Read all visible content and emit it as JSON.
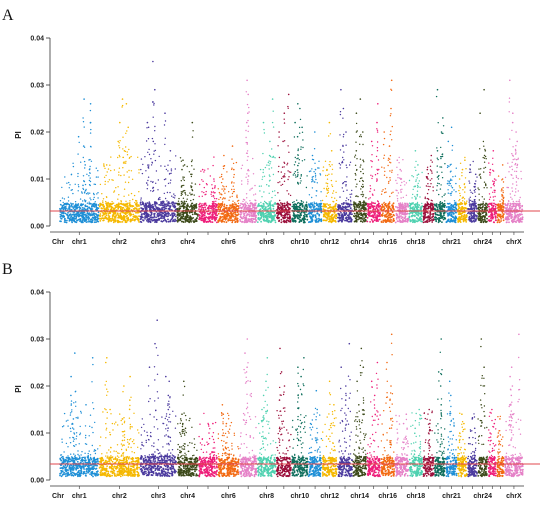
{
  "chart_data": [
    {
      "type": "scatter",
      "panel_label": "A",
      "ylabel": "PI",
      "ylim": [
        0,
        0.04
      ],
      "yticks": [
        "0.00",
        "0.01",
        "0.02",
        "0.03",
        "0.04"
      ],
      "threshold": 0.0032,
      "threshold_color": "#e0474c",
      "x_axis_title": "Chr",
      "chromosomes": [
        {
          "name": "chr1",
          "label": "chr1",
          "size": 1.55,
          "color": "#1e8fd6",
          "baseline": 0.003,
          "peaks": [
            0.027,
            0.026,
            0.022,
            0.019,
            0.017,
            0.013,
            0.012
          ]
        },
        {
          "name": "chr2",
          "label": "chr2",
          "size": 1.6,
          "color": "#f5b800",
          "baseline": 0.003,
          "peaks": [
            0.027,
            0.026,
            0.022,
            0.021,
            0.018,
            0.016,
            0.013
          ]
        },
        {
          "name": "chr3",
          "label": "chr3",
          "size": 1.45,
          "color": "#4b3a9e",
          "baseline": 0.0032,
          "peaks": [
            0.035,
            0.029,
            0.024,
            0.022,
            0.021,
            0.018,
            0.016
          ]
        },
        {
          "name": "chr4",
          "label": "chr4",
          "size": 0.85,
          "color": "#3c4a1a",
          "baseline": 0.003,
          "peaks": [
            0.022,
            0.014,
            0.013,
            0.012,
            0.011
          ]
        },
        {
          "name": "chr5",
          "label": "",
          "size": 0.75,
          "color": "#ee1f7a",
          "baseline": 0.003,
          "peaks": [
            0.012,
            0.01,
            0.008
          ]
        },
        {
          "name": "chr6",
          "label": "chr6",
          "size": 0.85,
          "color": "#f26a13",
          "baseline": 0.003,
          "peaks": [
            0.017,
            0.015,
            0.012,
            0.01
          ]
        },
        {
          "name": "chr7",
          "label": "",
          "size": 0.7,
          "color": "#e581c7",
          "baseline": 0.003,
          "peaks": [
            0.031,
            0.028,
            0.024,
            0.022
          ]
        },
        {
          "name": "chr8",
          "label": "chr8",
          "size": 0.75,
          "color": "#4fd1b0",
          "baseline": 0.003,
          "peaks": [
            0.027,
            0.022,
            0.018,
            0.015
          ]
        },
        {
          "name": "chr9",
          "label": "",
          "size": 0.6,
          "color": "#9b0f3b",
          "baseline": 0.003,
          "peaks": [
            0.028,
            0.024,
            0.02,
            0.018
          ]
        },
        {
          "name": "chr10",
          "label": "chr10",
          "size": 0.65,
          "color": "#0e6e5c",
          "baseline": 0.003,
          "peaks": [
            0.026,
            0.025,
            0.022,
            0.021,
            0.019
          ]
        },
        {
          "name": "chr11",
          "label": "",
          "size": 0.55,
          "color": "#1e8fd6",
          "baseline": 0.003,
          "peaks": [
            0.02,
            0.015,
            0.012
          ]
        },
        {
          "name": "chr12",
          "label": "chr12",
          "size": 0.6,
          "color": "#f5b800",
          "baseline": 0.003,
          "peaks": [
            0.022,
            0.016,
            0.012
          ]
        },
        {
          "name": "chr13",
          "label": "",
          "size": 0.6,
          "color": "#4b3a9e",
          "baseline": 0.003,
          "peaks": [
            0.029,
            0.025,
            0.02,
            0.017
          ]
        },
        {
          "name": "chr14",
          "label": "chr14",
          "size": 0.55,
          "color": "#3c4a1a",
          "baseline": 0.0032,
          "peaks": [
            0.027,
            0.024,
            0.02,
            0.016,
            0.014
          ]
        },
        {
          "name": "chr15",
          "label": "",
          "size": 0.55,
          "color": "#ee1f7a",
          "baseline": 0.003,
          "peaks": [
            0.026,
            0.022,
            0.018
          ]
        },
        {
          "name": "chr16",
          "label": "chr16",
          "size": 0.55,
          "color": "#f26a13",
          "baseline": 0.003,
          "peaks": [
            0.031,
            0.025,
            0.02,
            0.017
          ]
        },
        {
          "name": "chr17",
          "label": "",
          "size": 0.55,
          "color": "#e581c7",
          "baseline": 0.003,
          "peaks": [
            0.014,
            0.012,
            0.01
          ]
        },
        {
          "name": "chr18",
          "label": "chr18",
          "size": 0.55,
          "color": "#4fd1b0",
          "baseline": 0.003,
          "peaks": [
            0.016,
            0.013,
            0.011
          ]
        },
        {
          "name": "chr19",
          "label": "",
          "size": 0.45,
          "color": "#9b0f3b",
          "baseline": 0.003,
          "peaks": [
            0.015,
            0.012,
            0.01
          ]
        },
        {
          "name": "chr20",
          "label": "",
          "size": 0.45,
          "color": "#0e6e5c",
          "baseline": 0.003,
          "peaks": [
            0.029,
            0.023,
            0.02,
            0.016
          ]
        },
        {
          "name": "chr21",
          "label": "chr21",
          "size": 0.45,
          "color": "#1e8fd6",
          "baseline": 0.003,
          "peaks": [
            0.021,
            0.018,
            0.013
          ]
        },
        {
          "name": "chr22",
          "label": "",
          "size": 0.4,
          "color": "#f5b800",
          "baseline": 0.003,
          "peaks": [
            0.014,
            0.012,
            0.01
          ]
        },
        {
          "name": "chr23",
          "label": "",
          "size": 0.4,
          "color": "#4b3a9e",
          "baseline": 0.003,
          "peaks": [
            0.013,
            0.011,
            0.009
          ]
        },
        {
          "name": "chr24",
          "label": "chr24",
          "size": 0.4,
          "color": "#3c4a1a",
          "baseline": 0.003,
          "peaks": [
            0.029,
            0.024,
            0.016
          ]
        },
        {
          "name": "chr25",
          "label": "",
          "size": 0.35,
          "color": "#ee1f7a",
          "baseline": 0.003,
          "peaks": [
            0.016,
            0.012,
            0.01
          ]
        },
        {
          "name": "chr26",
          "label": "",
          "size": 0.3,
          "color": "#f26a13",
          "baseline": 0.003,
          "peaks": [
            0.013,
            0.01
          ]
        },
        {
          "name": "chrX",
          "label": "chrX",
          "size": 0.75,
          "color": "#e581c7",
          "baseline": 0.003,
          "peaks": [
            0.031,
            0.024,
            0.022,
            0.02,
            0.018,
            0.016
          ]
        }
      ]
    },
    {
      "type": "scatter",
      "panel_label": "B",
      "ylabel": "PI",
      "ylim": [
        0,
        0.04
      ],
      "yticks": [
        "0.00",
        "0.01",
        "0.02",
        "0.03",
        "0.04"
      ],
      "threshold": 0.0034,
      "threshold_color": "#e0474c",
      "x_axis_title": "Chr",
      "chromosomes": [
        {
          "name": "chr1",
          "label": "chr1",
          "size": 1.55,
          "color": "#1e8fd6",
          "baseline": 0.003,
          "peaks": [
            0.027,
            0.026,
            0.022,
            0.018,
            0.016,
            0.013,
            0.012
          ]
        },
        {
          "name": "chr2",
          "label": "chr2",
          "size": 1.6,
          "color": "#f5b800",
          "baseline": 0.003,
          "peaks": [
            0.026,
            0.025,
            0.022,
            0.02,
            0.017,
            0.015,
            0.013
          ]
        },
        {
          "name": "chr3",
          "label": "chr3",
          "size": 1.45,
          "color": "#4b3a9e",
          "baseline": 0.0032,
          "peaks": [
            0.034,
            0.029,
            0.024,
            0.022,
            0.021,
            0.018,
            0.015
          ]
        },
        {
          "name": "chr4",
          "label": "chr4",
          "size": 0.85,
          "color": "#3c4a1a",
          "baseline": 0.003,
          "peaks": [
            0.021,
            0.014,
            0.013,
            0.012,
            0.011
          ]
        },
        {
          "name": "chr5",
          "label": "",
          "size": 0.75,
          "color": "#ee1f7a",
          "baseline": 0.003,
          "peaks": [
            0.012,
            0.01,
            0.008
          ]
        },
        {
          "name": "chr6",
          "label": "chr6",
          "size": 0.85,
          "color": "#f26a13",
          "baseline": 0.003,
          "peaks": [
            0.016,
            0.014,
            0.012,
            0.01
          ]
        },
        {
          "name": "chr7",
          "label": "",
          "size": 0.7,
          "color": "#e581c7",
          "baseline": 0.003,
          "peaks": [
            0.03,
            0.027,
            0.024,
            0.021
          ]
        },
        {
          "name": "chr8",
          "label": "chr8",
          "size": 0.75,
          "color": "#4fd1b0",
          "baseline": 0.003,
          "peaks": [
            0.026,
            0.021,
            0.018,
            0.015
          ]
        },
        {
          "name": "chr9",
          "label": "",
          "size": 0.6,
          "color": "#9b0f3b",
          "baseline": 0.003,
          "peaks": [
            0.028,
            0.023,
            0.02,
            0.017
          ]
        },
        {
          "name": "chr10",
          "label": "chr10",
          "size": 0.65,
          "color": "#0e6e5c",
          "baseline": 0.003,
          "peaks": [
            0.026,
            0.024,
            0.022,
            0.02,
            0.018
          ]
        },
        {
          "name": "chr11",
          "label": "",
          "size": 0.55,
          "color": "#1e8fd6",
          "baseline": 0.003,
          "peaks": [
            0.019,
            0.015,
            0.012
          ]
        },
        {
          "name": "chr12",
          "label": "chr12",
          "size": 0.6,
          "color": "#f5b800",
          "baseline": 0.003,
          "peaks": [
            0.021,
            0.016,
            0.012
          ]
        },
        {
          "name": "chr13",
          "label": "",
          "size": 0.6,
          "color": "#4b3a9e",
          "baseline": 0.003,
          "peaks": [
            0.029,
            0.024,
            0.02,
            0.017
          ]
        },
        {
          "name": "chr14",
          "label": "chr14",
          "size": 0.55,
          "color": "#3c4a1a",
          "baseline": 0.0032,
          "peaks": [
            0.028,
            0.024,
            0.021,
            0.016,
            0.014
          ]
        },
        {
          "name": "chr15",
          "label": "",
          "size": 0.55,
          "color": "#ee1f7a",
          "baseline": 0.003,
          "peaks": [
            0.025,
            0.021,
            0.018
          ]
        },
        {
          "name": "chr16",
          "label": "chr16",
          "size": 0.55,
          "color": "#f26a13",
          "baseline": 0.003,
          "peaks": [
            0.031,
            0.025,
            0.02,
            0.017
          ]
        },
        {
          "name": "chr17",
          "label": "",
          "size": 0.55,
          "color": "#e581c7",
          "baseline": 0.003,
          "peaks": [
            0.014,
            0.012,
            0.01
          ]
        },
        {
          "name": "chr18",
          "label": "chr18",
          "size": 0.55,
          "color": "#4fd1b0",
          "baseline": 0.003,
          "peaks": [
            0.015,
            0.013,
            0.011
          ]
        },
        {
          "name": "chr19",
          "label": "",
          "size": 0.45,
          "color": "#9b0f3b",
          "baseline": 0.003,
          "peaks": [
            0.015,
            0.012,
            0.01
          ]
        },
        {
          "name": "chr20",
          "label": "",
          "size": 0.45,
          "color": "#0e6e5c",
          "baseline": 0.003,
          "peaks": [
            0.03,
            0.023,
            0.02,
            0.016
          ]
        },
        {
          "name": "chr21",
          "label": "chr21",
          "size": 0.45,
          "color": "#1e8fd6",
          "baseline": 0.003,
          "peaks": [
            0.021,
            0.018,
            0.013
          ]
        },
        {
          "name": "chr22",
          "label": "",
          "size": 0.4,
          "color": "#f5b800",
          "baseline": 0.003,
          "peaks": [
            0.014,
            0.012,
            0.01
          ]
        },
        {
          "name": "chr23",
          "label": "",
          "size": 0.4,
          "color": "#4b3a9e",
          "baseline": 0.003,
          "peaks": [
            0.013,
            0.011,
            0.009
          ]
        },
        {
          "name": "chr24",
          "label": "chr24",
          "size": 0.4,
          "color": "#3c4a1a",
          "baseline": 0.003,
          "peaks": [
            0.03,
            0.024,
            0.016
          ]
        },
        {
          "name": "chr25",
          "label": "",
          "size": 0.35,
          "color": "#ee1f7a",
          "baseline": 0.003,
          "peaks": [
            0.015,
            0.012,
            0.01
          ]
        },
        {
          "name": "chr26",
          "label": "",
          "size": 0.3,
          "color": "#f26a13",
          "baseline": 0.003,
          "peaks": [
            0.013,
            0.01
          ]
        },
        {
          "name": "chrX",
          "label": "chrX",
          "size": 0.75,
          "color": "#e581c7",
          "baseline": 0.003,
          "peaks": [
            0.031,
            0.024,
            0.022,
            0.02,
            0.018,
            0.016
          ]
        }
      ]
    }
  ]
}
